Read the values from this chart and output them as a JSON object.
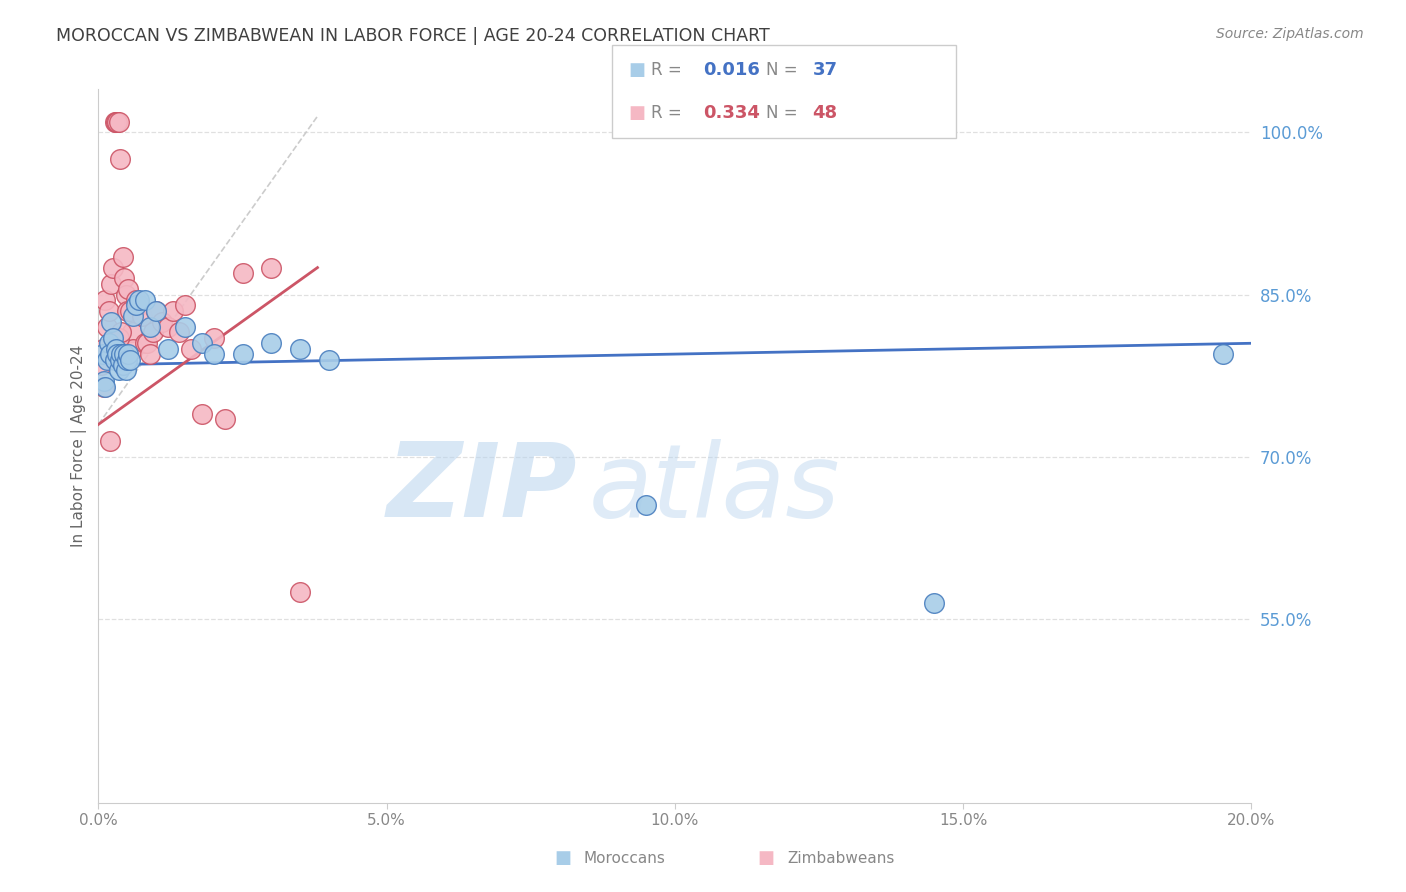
{
  "title": "MOROCCAN VS ZIMBABWEAN IN LABOR FORCE | AGE 20-24 CORRELATION CHART",
  "source": "Source: ZipAtlas.com",
  "ylabel": "In Labor Force | Age 20-24",
  "xlim": [
    0.0,
    20.0
  ],
  "ylim": [
    38.0,
    104.0
  ],
  "yticks": [
    55.0,
    70.0,
    85.0,
    100.0
  ],
  "moroccans_x": [
    0.08,
    0.1,
    0.12,
    0.15,
    0.18,
    0.2,
    0.22,
    0.25,
    0.28,
    0.3,
    0.32,
    0.35,
    0.38,
    0.4,
    0.42,
    0.45,
    0.48,
    0.5,
    0.52,
    0.55,
    0.6,
    0.65,
    0.7,
    0.8,
    0.9,
    1.0,
    1.2,
    1.5,
    1.8,
    2.0,
    2.5,
    3.0,
    3.5,
    4.0,
    9.5,
    14.5,
    19.5
  ],
  "moroccans_y": [
    79.5,
    77.0,
    76.5,
    79.0,
    80.5,
    79.5,
    82.5,
    81.0,
    79.0,
    80.0,
    79.5,
    78.0,
    79.0,
    79.5,
    78.5,
    79.5,
    78.0,
    79.0,
    79.5,
    79.0,
    83.0,
    84.0,
    84.5,
    84.5,
    82.0,
    83.5,
    80.0,
    82.0,
    80.5,
    79.5,
    79.5,
    80.5,
    80.0,
    79.0,
    65.5,
    56.5,
    79.5
  ],
  "zimbabweans_x": [
    0.05,
    0.08,
    0.1,
    0.12,
    0.15,
    0.18,
    0.2,
    0.22,
    0.25,
    0.28,
    0.3,
    0.32,
    0.35,
    0.38,
    0.4,
    0.42,
    0.45,
    0.48,
    0.5,
    0.52,
    0.55,
    0.58,
    0.6,
    0.65,
    0.7,
    0.75,
    0.8,
    0.85,
    0.9,
    0.95,
    1.0,
    1.1,
    1.2,
    1.3,
    1.4,
    1.5,
    1.6,
    1.8,
    2.0,
    2.2,
    2.5,
    3.0,
    3.5,
    0.2,
    0.25,
    0.3,
    0.35,
    0.4
  ],
  "zimbabweans_y": [
    78.5,
    80.0,
    76.5,
    84.5,
    82.0,
    83.5,
    71.5,
    86.0,
    87.5,
    101.0,
    101.0,
    101.0,
    101.0,
    97.5,
    80.0,
    88.5,
    86.5,
    85.0,
    83.5,
    85.5,
    83.5,
    81.5,
    80.0,
    84.5,
    84.0,
    83.0,
    80.5,
    80.5,
    79.5,
    81.5,
    83.5,
    82.5,
    82.0,
    83.5,
    81.5,
    84.0,
    80.0,
    74.0,
    81.0,
    73.5,
    87.0,
    87.5,
    57.5,
    79.5,
    80.0,
    80.5,
    81.0,
    81.5
  ],
  "moroccans_color_face": "#a8cde8",
  "moroccans_color_edge": "#4a7fbf",
  "zimbabweans_color_face": "#f5b8c4",
  "zimbabweans_color_edge": "#cc5566",
  "blue_trend_color": "#4472c4",
  "pink_trend_color": "#cc5566",
  "dashed_color": "#cccccc",
  "grid_color": "#e0e0e0",
  "right_axis_color": "#5b9bd5",
  "title_color": "#404040",
  "source_color": "#888888",
  "watermark_color": "#c8dff5",
  "legend_box_edge": "#cccccc",
  "R_blue": "0.016",
  "N_blue": "37",
  "R_pink": "0.334",
  "N_pink": "48",
  "legend_text_color_blue": "#4472c4",
  "legend_text_color_pink": "#cc5566",
  "legend_label_moroccan": "Moroccans",
  "legend_label_zimbabwean": "Zimbabweans",
  "blue_trend_x0": 0.0,
  "blue_trend_y0": 78.5,
  "blue_trend_x1": 20.0,
  "blue_trend_y1": 80.5,
  "pink_trend_x0": 0.0,
  "pink_trend_y0": 73.0,
  "pink_trend_x1": 3.8,
  "pink_trend_y1": 87.5,
  "dashed_x0": 0.0,
  "dashed_y0": 73.0,
  "dashed_x1": 3.8,
  "dashed_y1": 101.5
}
